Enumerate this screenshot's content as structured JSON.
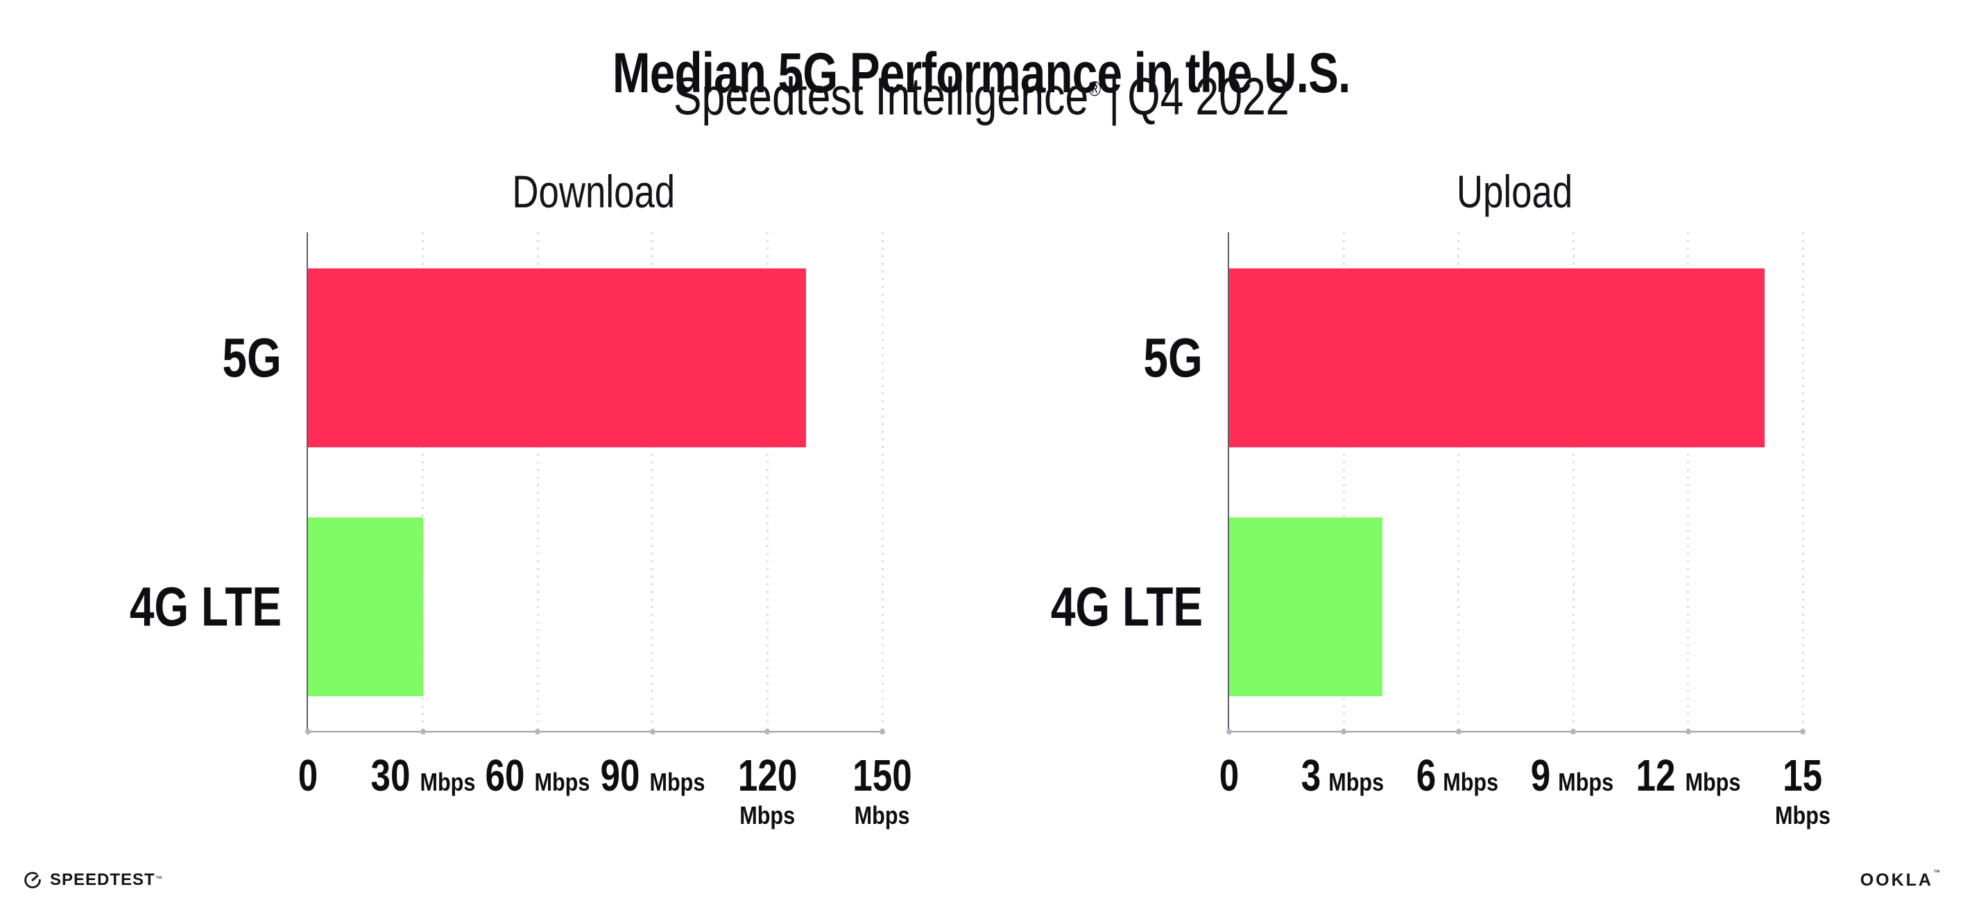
{
  "header": {
    "title": "Median 5G Performance in the U.S.",
    "subtitle_brand": "Speedtest Intelligence",
    "subtitle_registered": "®",
    "subtitle_divider": "|",
    "subtitle_period": "Q4 2022"
  },
  "chart_data": [
    {
      "type": "bar",
      "orientation": "horizontal",
      "title": "Download",
      "categories": [
        "5G",
        "4G LTE"
      ],
      "values": [
        130,
        30
      ],
      "value_unit": "Mbps",
      "xlabel": "",
      "ylabel": "",
      "xlim": [
        0,
        150
      ],
      "xticks": [
        0,
        30,
        60,
        90,
        120,
        150
      ],
      "xtick_unit_label": "Mbps",
      "grid": "vertical-dotted",
      "legend_position": "none",
      "bar_colors": [
        "#ff2d55",
        "#80fb66"
      ]
    },
    {
      "type": "bar",
      "orientation": "horizontal",
      "title": "Upload",
      "categories": [
        "5G",
        "4G LTE"
      ],
      "values": [
        14,
        4
      ],
      "value_unit": "Mbps",
      "xlabel": "",
      "ylabel": "",
      "xlim": [
        0,
        15
      ],
      "xticks": [
        0,
        3,
        6,
        9,
        12,
        15
      ],
      "xtick_unit_label": "Mbps",
      "grid": "vertical-dotted",
      "legend_position": "none",
      "bar_colors": [
        "#ff2d55",
        "#80fb66"
      ]
    }
  ],
  "footer": {
    "speedtest_wordmark": "SPEEDTEST",
    "speedtest_trademark": "™",
    "ookla_wordmark": "OOKLA",
    "ookla_trademark": "™"
  },
  "colors": {
    "bar_5g": "#ff2d55",
    "bar_4g_lte": "#80fb66",
    "grid_dots": "#dcdce8",
    "x_axis_line": "#9b9ba5",
    "y_axis_line": "#5f5d6a",
    "text": "#0d0d12"
  }
}
